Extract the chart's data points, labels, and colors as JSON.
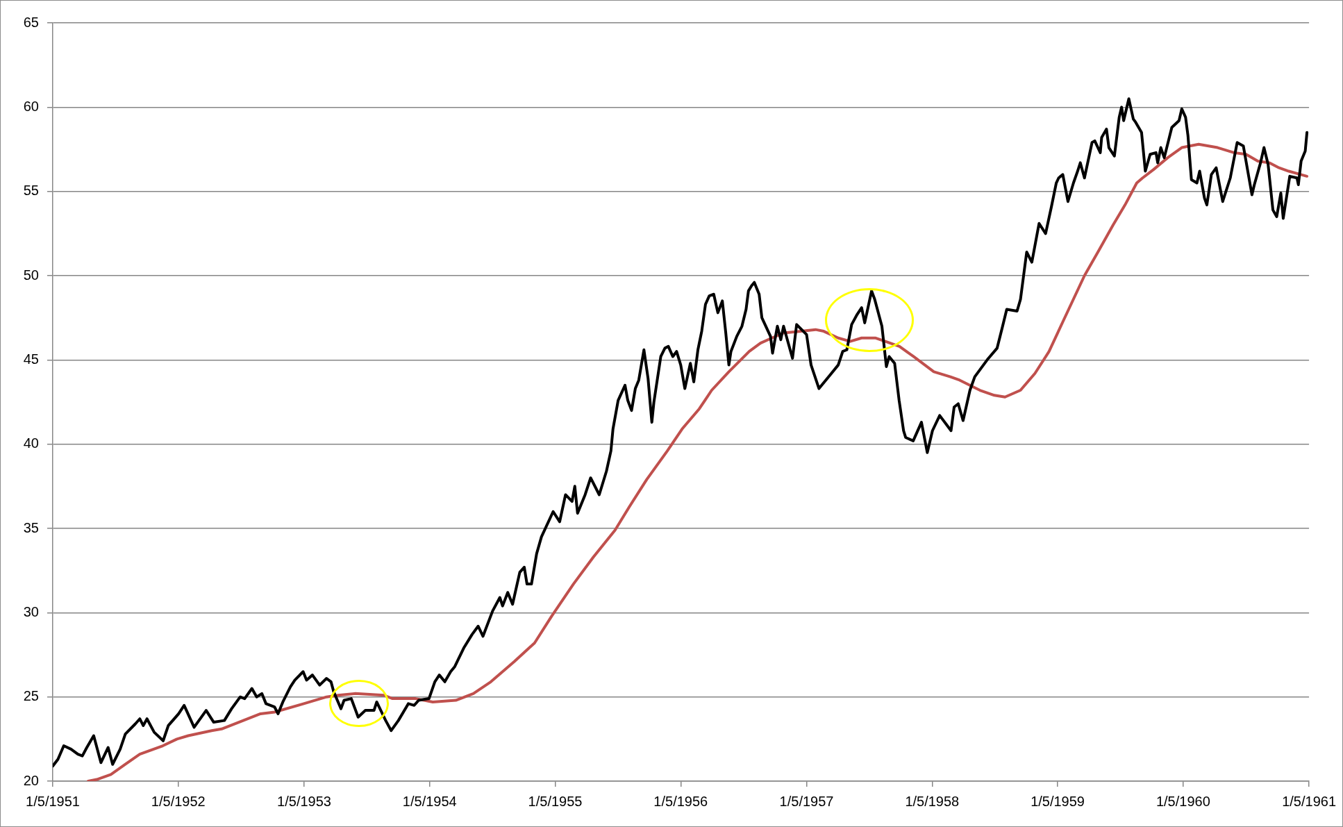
{
  "chart_data": {
    "type": "line",
    "grid": "y",
    "marker": "none",
    "line_style": "solid",
    "xlim": [
      "1951-01-05",
      "1961-01-05"
    ],
    "xticks": [
      {
        "value": "1951-01-05",
        "label": "1/5/1951"
      },
      {
        "value": "1952-01-05",
        "label": "1/5/1952"
      },
      {
        "value": "1953-01-05",
        "label": "1/5/1953"
      },
      {
        "value": "1954-01-05",
        "label": "1/5/1954"
      },
      {
        "value": "1955-01-05",
        "label": "1/5/1955"
      },
      {
        "value": "1956-01-05",
        "label": "1/5/1956"
      },
      {
        "value": "1957-01-05",
        "label": "1/5/1957"
      },
      {
        "value": "1958-01-05",
        "label": "1/5/1958"
      },
      {
        "value": "1959-01-05",
        "label": "1/5/1959"
      },
      {
        "value": "1960-01-05",
        "label": "1/5/1960"
      },
      {
        "value": "1961-01-05",
        "label": "1/5/1961"
      }
    ],
    "ylim": [
      20,
      65
    ],
    "yticks": [
      20,
      25,
      30,
      35,
      40,
      45,
      50,
      55,
      60,
      65
    ],
    "series": [
      {
        "color": "#000000",
        "x": [
          "1951-01-05",
          "1951-01-20",
          "1951-02-06",
          "1951-02-27",
          "1951-03-19",
          "1951-04-01",
          "1951-04-14",
          "1951-05-04",
          "1951-05-25",
          "1951-06-15",
          "1951-06-28",
          "1951-07-20",
          "1951-08-04",
          "1951-09-02",
          "1951-09-15",
          "1951-09-25",
          "1951-10-06",
          "1951-10-27",
          "1951-11-22",
          "1951-12-07",
          "1952-01-06",
          "1952-01-22",
          "1952-02-20",
          "1952-03-26",
          "1952-04-17",
          "1952-05-18",
          "1952-06-08",
          "1952-07-03",
          "1952-07-16",
          "1952-08-06",
          "1952-08-20",
          "1952-09-04",
          "1952-09-16",
          "1952-10-11",
          "1952-10-21",
          "1952-11-04",
          "1952-11-26",
          "1952-12-09",
          "1953-01-02",
          "1953-01-12",
          "1953-01-29",
          "1953-02-19",
          "1953-03-11",
          "1953-03-24",
          "1953-04-01",
          "1953-04-22",
          "1953-05-01",
          "1953-05-22",
          "1953-06-11",
          "1953-07-02",
          "1953-07-27",
          "1953-08-04",
          "1953-08-30",
          "1953-09-15",
          "1953-10-06",
          "1953-11-04",
          "1953-11-21",
          "1953-12-04",
          "1954-01-03",
          "1954-01-20",
          "1954-02-02",
          "1954-02-18",
          "1954-03-07",
          "1954-03-19",
          "1954-04-14",
          "1954-05-08",
          "1954-05-26",
          "1954-06-09",
          "1954-07-07",
          "1954-07-28",
          "1954-08-05",
          "1954-08-20",
          "1954-09-03",
          "1954-09-24",
          "1954-10-07",
          "1954-10-15",
          "1954-10-28",
          "1954-11-12",
          "1954-11-26",
          "1954-12-30",
          "1955-01-18",
          "1955-02-04",
          "1955-02-23",
          "1955-03-03",
          "1955-03-11",
          "1955-04-02",
          "1955-04-18",
          "1955-05-13",
          "1955-06-03",
          "1955-06-16",
          "1955-06-22",
          "1955-07-07",
          "1955-07-27",
          "1955-08-04",
          "1955-08-15",
          "1955-08-26",
          "1955-09-05",
          "1955-09-20",
          "1955-10-02",
          "1955-10-13",
          "1955-10-19",
          "1955-11-08",
          "1955-11-20",
          "1955-11-30",
          "1955-12-13",
          "1955-12-24",
          "1956-01-05",
          "1956-01-17",
          "1956-02-02",
          "1956-02-12",
          "1956-02-24",
          "1956-03-06",
          "1956-03-17",
          "1956-03-28",
          "1956-04-10",
          "1956-04-22",
          "1956-05-05",
          "1956-05-15",
          "1956-05-24",
          "1956-05-30",
          "1956-06-16",
          "1956-07-01",
          "1956-07-13",
          "1956-07-20",
          "1956-07-29",
          "1956-08-06",
          "1956-08-20",
          "1956-08-28",
          "1956-09-22",
          "1956-09-28",
          "1956-10-12",
          "1956-10-22",
          "1956-10-30",
          "1956-11-25",
          "1956-12-07",
          "1957-01-05",
          "1957-01-18",
          "1957-02-10",
          "1957-03-14",
          "1957-04-07",
          "1957-04-20",
          "1957-05-02",
          "1957-05-16",
          "1957-06-01",
          "1957-06-14",
          "1957-06-23",
          "1957-07-13",
          "1957-07-22",
          "1957-08-12",
          "1957-08-25",
          "1957-09-02",
          "1957-09-18",
          "1957-10-01",
          "1957-10-14",
          "1957-10-20",
          "1957-11-11",
          "1957-12-05",
          "1957-12-22",
          "1958-01-06",
          "1958-01-27",
          "1958-03-01",
          "1958-03-10",
          "1958-03-22",
          "1958-04-05",
          "1958-04-25",
          "1958-05-09",
          "1958-06-14",
          "1958-07-13",
          "1958-07-29",
          "1958-08-10",
          "1958-09-09",
          "1958-09-19",
          "1958-10-07",
          "1958-10-22",
          "1958-11-12",
          "1958-12-01",
          "1958-12-18",
          "1959-01-01",
          "1959-01-08",
          "1959-01-20",
          "1959-02-04",
          "1959-02-20",
          "1959-03-04",
          "1959-03-12",
          "1959-03-24",
          "1959-04-15",
          "1959-04-23",
          "1959-05-09",
          "1959-05-13",
          "1959-05-27",
          "1959-06-03",
          "1959-06-19",
          "1959-07-03",
          "1959-07-10",
          "1959-07-16",
          "1959-07-31",
          "1959-08-13",
          "1959-08-20",
          "1959-09-06",
          "1959-09-17",
          "1959-10-01",
          "1959-10-18",
          "1959-10-23",
          "1959-11-01",
          "1959-11-11",
          "1959-12-03",
          "1959-12-24",
          "1960-01-01",
          "1960-01-12",
          "1960-01-19",
          "1960-01-29",
          "1960-02-14",
          "1960-02-22",
          "1960-03-07",
          "1960-03-14",
          "1960-03-27",
          "1960-04-10",
          "1960-04-29",
          "1960-05-21",
          "1960-06-10",
          "1960-06-28",
          "1960-07-23",
          "1960-07-30",
          "1960-08-17",
          "1960-08-27",
          "1960-09-08",
          "1960-09-22",
          "1960-10-03",
          "1960-10-15",
          "1960-10-22",
          "1960-11-10",
          "1960-12-01",
          "1960-12-05",
          "1960-12-13",
          "1960-12-25",
          "1960-12-30"
        ],
        "values": [
          20.9,
          21.3,
          22.1,
          21.9,
          21.6,
          21.5,
          22.0,
          22.7,
          21.1,
          22.0,
          21.0,
          21.9,
          22.8,
          23.4,
          23.7,
          23.3,
          23.7,
          22.9,
          22.4,
          23.3,
          24.0,
          24.5,
          23.2,
          24.2,
          23.5,
          23.6,
          24.3,
          25.0,
          24.9,
          25.5,
          25.0,
          25.2,
          24.6,
          24.4,
          24.0,
          24.7,
          25.6,
          26.0,
          26.5,
          26.0,
          26.3,
          25.7,
          26.1,
          25.9,
          25.3,
          24.3,
          24.8,
          24.9,
          23.8,
          24.2,
          24.2,
          24.7,
          23.6,
          23.0,
          23.6,
          24.6,
          24.5,
          24.8,
          24.9,
          25.9,
          26.3,
          25.9,
          26.5,
          26.8,
          27.9,
          28.7,
          29.2,
          28.6,
          30.1,
          30.9,
          30.4,
          31.2,
          30.5,
          32.4,
          32.7,
          31.7,
          31.7,
          33.5,
          34.5,
          36.0,
          35.4,
          37.0,
          36.6,
          37.5,
          35.9,
          37.0,
          38.0,
          37.0,
          38.4,
          39.6,
          40.9,
          42.6,
          43.5,
          42.6,
          42.0,
          43.3,
          43.8,
          45.6,
          43.9,
          41.3,
          42.5,
          45.2,
          45.7,
          45.8,
          45.2,
          45.5,
          44.7,
          43.3,
          44.8,
          43.7,
          45.6,
          46.7,
          48.3,
          48.8,
          48.9,
          47.8,
          48.5,
          46.6,
          44.7,
          45.5,
          46.4,
          47.0,
          48.0,
          49.1,
          49.4,
          49.6,
          48.9,
          47.5,
          46.4,
          45.4,
          47.0,
          46.2,
          47.0,
          45.1,
          47.1,
          46.5,
          44.7,
          43.3,
          44.1,
          44.7,
          45.5,
          45.6,
          47.1,
          47.7,
          48.1,
          47.2,
          49.1,
          48.6,
          47.0,
          44.6,
          45.2,
          44.8,
          42.6,
          40.8,
          40.4,
          40.2,
          41.3,
          39.5,
          40.8,
          41.7,
          40.8,
          42.2,
          42.4,
          41.4,
          43.2,
          44.0,
          45.0,
          45.7,
          47.0,
          48.0,
          47.9,
          48.6,
          51.4,
          50.8,
          53.1,
          52.5,
          54.1,
          55.5,
          55.8,
          56.0,
          54.4,
          55.5,
          56.2,
          56.7,
          55.8,
          57.9,
          58.0,
          57.3,
          58.2,
          58.7,
          57.6,
          57.1,
          59.4,
          60.0,
          59.2,
          60.5,
          59.3,
          59.1,
          58.5,
          56.2,
          57.2,
          57.3,
          56.7,
          57.6,
          57.0,
          58.8,
          59.2,
          59.9,
          59.4,
          58.3,
          55.7,
          55.5,
          56.2,
          54.6,
          54.2,
          56.0,
          56.4,
          54.4,
          55.8,
          57.9,
          57.7,
          54.8,
          55.4,
          56.7,
          57.6,
          56.6,
          53.9,
          53.5,
          54.9,
          53.4,
          55.9,
          55.8,
          55.4,
          56.8,
          57.4,
          58.5
        ]
      },
      {
        "color": "#c0504d",
        "x": [
          "1951-04-18",
          "1951-05-13",
          "1951-06-23",
          "1951-08-04",
          "1951-09-15",
          "1951-11-21",
          "1952-01-01",
          "1952-02-03",
          "1952-04-11",
          "1952-05-10",
          "1952-07-12",
          "1952-08-31",
          "1952-10-11",
          "1953-01-04",
          "1953-03-11",
          "1953-04-14",
          "1953-06-03",
          "1953-08-25",
          "1953-09-19",
          "1953-11-25",
          "1954-01-14",
          "1954-03-22",
          "1954-05-12",
          "1954-07-02",
          "1954-09-08",
          "1954-11-06",
          "1954-12-26",
          "1955-02-27",
          "1955-04-26",
          "1955-06-28",
          "1955-08-09",
          "1955-09-28",
          "1955-11-27",
          "1956-01-09",
          "1956-02-28",
          "1956-04-04",
          "1956-05-24",
          "1956-07-22",
          "1956-08-24",
          "1956-09-26",
          "1956-10-30",
          "1956-12-20",
          "1957-01-31",
          "1957-02-24",
          "1957-04-07",
          "1957-05-12",
          "1957-06-14",
          "1957-07-25",
          "1957-10-02",
          "1957-11-12",
          "1958-01-10",
          "1958-02-27",
          "1958-03-26",
          "1958-05-24",
          "1958-07-05",
          "1958-08-05",
          "1958-09-19",
          "1958-10-31",
          "1958-12-11",
          "1959-01-21",
          "1959-03-24",
          "1959-05-05",
          "1959-06-15",
          "1959-07-20",
          "1959-08-23",
          "1959-09-09",
          "1959-10-11",
          "1959-11-21",
          "1960-01-01",
          "1960-02-19",
          "1960-04-14",
          "1960-06-01",
          "1960-07-06",
          "1960-08-09",
          "1960-09-12",
          "1960-10-10",
          "1960-11-07",
          "1960-12-12",
          "1960-12-30"
        ],
        "values": [
          20.0,
          20.1,
          20.4,
          21.0,
          21.6,
          22.1,
          22.5,
          22.7,
          23.0,
          23.1,
          23.6,
          24.0,
          24.1,
          24.6,
          25.0,
          25.1,
          25.2,
          25.1,
          24.9,
          24.9,
          24.7,
          24.8,
          25.2,
          25.9,
          27.1,
          28.2,
          29.8,
          31.7,
          33.3,
          34.9,
          36.3,
          37.9,
          39.6,
          40.9,
          42.1,
          43.2,
          44.3,
          45.5,
          46.0,
          46.3,
          46.6,
          46.7,
          46.8,
          46.7,
          46.3,
          46.1,
          46.3,
          46.3,
          45.8,
          45.2,
          44.3,
          44.0,
          43.8,
          43.2,
          42.9,
          42.8,
          43.2,
          44.2,
          45.5,
          47.3,
          50.0,
          51.5,
          53.0,
          54.2,
          55.5,
          55.8,
          56.3,
          57.0,
          57.6,
          57.8,
          57.6,
          57.3,
          57.2,
          56.8,
          56.7,
          56.4,
          56.2,
          56.0,
          55.9
        ]
      }
    ]
  }
}
